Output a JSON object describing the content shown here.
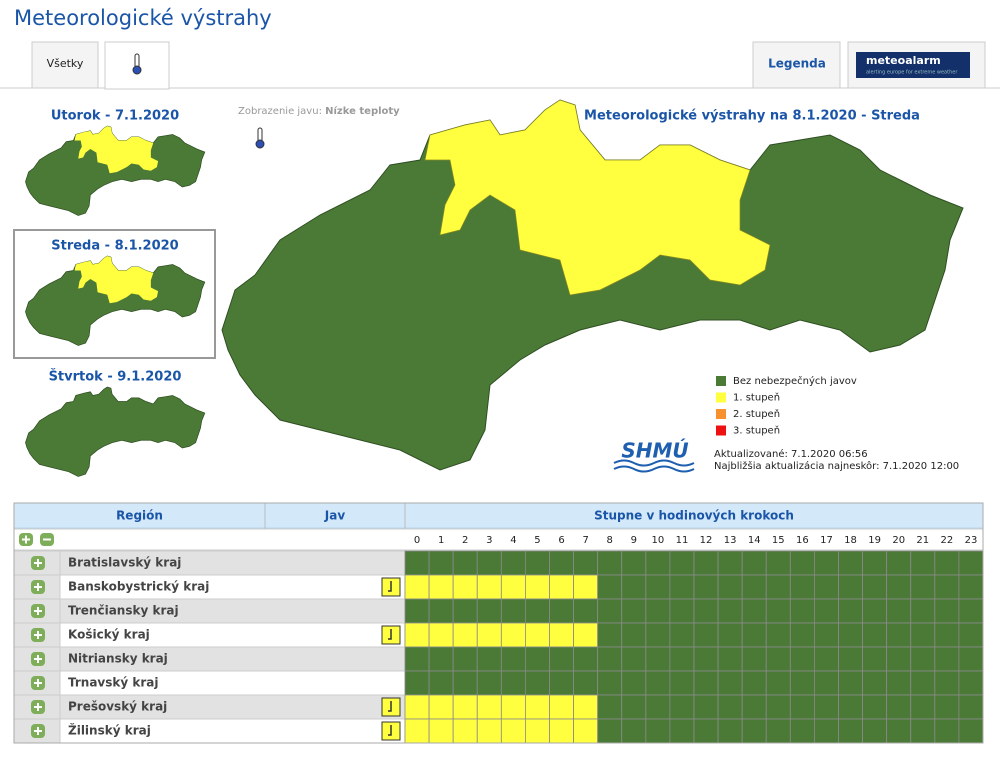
{
  "header": {
    "title": "Meteorologické výstrahy"
  },
  "tabs": {
    "all": "Všetky",
    "legend": "Legenda",
    "meteoalarm": "meteoalarm",
    "meteoalarm_tagline": "alerting europe for extreme weather"
  },
  "days": [
    {
      "label": "Utorok - 7.1.2020",
      "warned": true
    },
    {
      "label": "Streda - 8.1.2020",
      "warned": true,
      "selected": true
    },
    {
      "label": "Štvrtok - 9.1.2020",
      "warned": false
    }
  ],
  "display": {
    "label": "Zobrazenie javu:",
    "value": "Nízke teploty"
  },
  "map": {
    "title": "Meteorologické výstrahy na 8.1.2020 - Streda"
  },
  "legend": [
    {
      "label": "Bez nebezpečných javov",
      "color": "#4b7a37"
    },
    {
      "label": "1. stupeň",
      "color": "#ffff40"
    },
    {
      "label": "2. stupeň",
      "color": "#f7902e"
    },
    {
      "label": "3. stupeň",
      "color": "#ee1111"
    }
  ],
  "logo": "SHMÚ",
  "updated": {
    "current": "Aktualizované: 7.1.2020 06:56",
    "next": "Najbližšia aktualizácia najneskôr: 7.1.2020 12:00"
  },
  "table": {
    "headers": [
      "Región",
      "Jav",
      "Stupne v hodinových krokoch"
    ],
    "hours": [
      0,
      1,
      2,
      3,
      4,
      5,
      6,
      7,
      8,
      9,
      10,
      11,
      12,
      13,
      14,
      15,
      16,
      17,
      18,
      19,
      20,
      21,
      22,
      23
    ],
    "rows": [
      {
        "region": "Bratislavský kraj",
        "levels": [
          0,
          0,
          0,
          0,
          0,
          0,
          0,
          0,
          0,
          0,
          0,
          0,
          0,
          0,
          0,
          0,
          0,
          0,
          0,
          0,
          0,
          0,
          0,
          0
        ]
      },
      {
        "region": "Banskobystrický kraj",
        "levels": [
          1,
          1,
          1,
          1,
          1,
          1,
          1,
          1,
          0,
          0,
          0,
          0,
          0,
          0,
          0,
          0,
          0,
          0,
          0,
          0,
          0,
          0,
          0,
          0
        ]
      },
      {
        "region": "Trenčiansky kraj",
        "levels": [
          0,
          0,
          0,
          0,
          0,
          0,
          0,
          0,
          0,
          0,
          0,
          0,
          0,
          0,
          0,
          0,
          0,
          0,
          0,
          0,
          0,
          0,
          0,
          0
        ]
      },
      {
        "region": "Košický kraj",
        "levels": [
          1,
          1,
          1,
          1,
          1,
          1,
          1,
          1,
          0,
          0,
          0,
          0,
          0,
          0,
          0,
          0,
          0,
          0,
          0,
          0,
          0,
          0,
          0,
          0
        ]
      },
      {
        "region": "Nitriansky kraj",
        "levels": [
          0,
          0,
          0,
          0,
          0,
          0,
          0,
          0,
          0,
          0,
          0,
          0,
          0,
          0,
          0,
          0,
          0,
          0,
          0,
          0,
          0,
          0,
          0,
          0
        ]
      },
      {
        "region": "Trnavský kraj",
        "levels": [
          0,
          0,
          0,
          0,
          0,
          0,
          0,
          0,
          0,
          0,
          0,
          0,
          0,
          0,
          0,
          0,
          0,
          0,
          0,
          0,
          0,
          0,
          0,
          0
        ]
      },
      {
        "region": "Prešovský kraj",
        "levels": [
          1,
          1,
          1,
          1,
          1,
          1,
          1,
          1,
          0,
          0,
          0,
          0,
          0,
          0,
          0,
          0,
          0,
          0,
          0,
          0,
          0,
          0,
          0,
          0
        ]
      },
      {
        "region": "Žilinský kraj",
        "levels": [
          1,
          1,
          1,
          1,
          1,
          1,
          1,
          1,
          0,
          0,
          0,
          0,
          0,
          0,
          0,
          0,
          0,
          0,
          0,
          0,
          0,
          0,
          0,
          0
        ]
      }
    ]
  }
}
